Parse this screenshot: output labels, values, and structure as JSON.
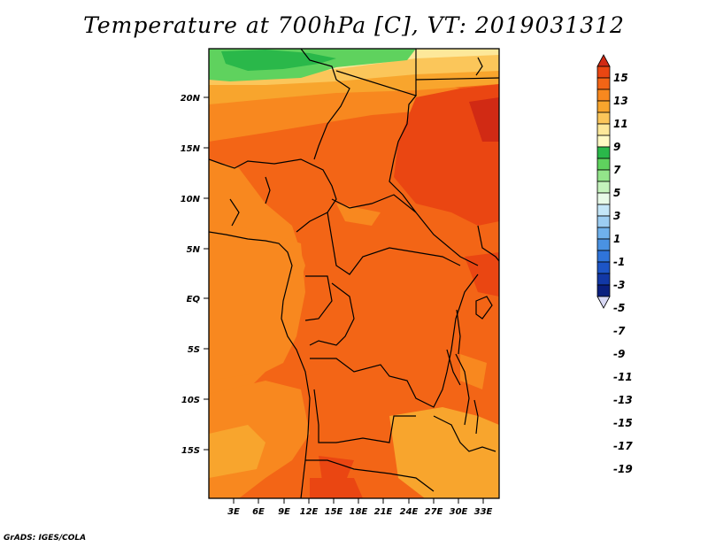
{
  "title": "Temperature at 700hPa [C], VT: 2019031312",
  "credit": "GrADS: IGES/COLA",
  "map": {
    "lat_labels": [
      "20N",
      "15N",
      "10N",
      "5N",
      "EQ",
      "5S",
      "10S",
      "15S"
    ],
    "lon_labels": [
      "3E",
      "6E",
      "9E",
      "12E",
      "15E",
      "18E",
      "21E",
      "24E",
      "27E",
      "30E",
      "33E"
    ]
  },
  "colorbar": {
    "labels": [
      "15",
      "13",
      "11",
      "9",
      "7",
      "5",
      "3",
      "1",
      "-1",
      "-3",
      "-5",
      "-7",
      "-9",
      "-11",
      "-13",
      "-15",
      "-17",
      "-19"
    ],
    "colors": [
      "#d12a14",
      "#ea4612",
      "#f36516",
      "#f8881f",
      "#f8a52d",
      "#fbc65a",
      "#fde89a",
      "#fff9c4",
      "#2ab84a",
      "#5fd25e",
      "#93e48a",
      "#c4f2bc",
      "#e8fae8",
      "#c4e6f8",
      "#9ccdf2",
      "#6fb1ec",
      "#4a92e2",
      "#2f74da",
      "#1d55c6",
      "#1238a6",
      "#0a1f7e",
      "#d8d8f4"
    ]
  },
  "legend_colors": {
    "warm_15": "#d12a14",
    "warm_11": "#f36516",
    "warm_9": "#f8881f",
    "warm_7": "#f8a52d",
    "green_1": "#2ab84a"
  }
}
